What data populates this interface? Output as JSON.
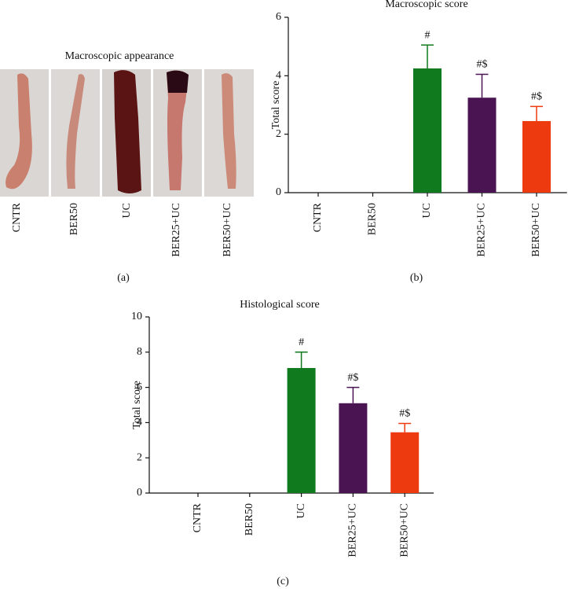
{
  "photo_panel": {
    "title": "Macroscopic appearance",
    "labels": [
      "CNTR",
      "BER50",
      "UC",
      "BER25+UC",
      "BER50+UC"
    ],
    "caption": "(a)"
  },
  "chart_data": [
    {
      "type": "bar",
      "title": "Macroscopic score",
      "y_label": "Total score",
      "caption": "(b)",
      "categories": [
        "CNTR",
        "BER50",
        "UC",
        "BER25+UC",
        "BER50+UC"
      ],
      "values": [
        0,
        0,
        4.25,
        3.25,
        2.45
      ],
      "errors": [
        0,
        0,
        0.8,
        0.8,
        0.5
      ],
      "significance": [
        null,
        null,
        "#",
        "#$",
        "#$"
      ],
      "colors": [
        "#0f7a1e",
        "#0f7a1e",
        "#0f7a1e",
        "#4a1452",
        "#ee3a0f"
      ],
      "ylim": [
        0,
        6
      ],
      "yticks": [
        0,
        2,
        4,
        6
      ]
    },
    {
      "type": "bar",
      "title": "Histological score",
      "y_label": "Total score",
      "caption": "(c)",
      "categories": [
        "CNTR",
        "BER50",
        "UC",
        "BER25+UC",
        "BER50+UC"
      ],
      "values": [
        0,
        0,
        7.1,
        5.1,
        3.45
      ],
      "errors": [
        0,
        0,
        0.9,
        0.9,
        0.5
      ],
      "significance": [
        null,
        null,
        "#",
        "#$",
        "#$"
      ],
      "colors": [
        "#0f7a1e",
        "#0f7a1e",
        "#0f7a1e",
        "#4a1452",
        "#ee3a0f"
      ],
      "ylim": [
        0,
        10
      ],
      "yticks": [
        0,
        2,
        4,
        6,
        8,
        10
      ]
    }
  ]
}
